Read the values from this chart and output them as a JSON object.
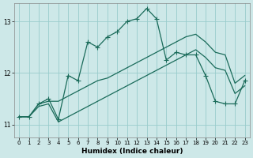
{
  "xlabel": "Humidex (Indice chaleur)",
  "background_color": "#cde8e8",
  "grid_color": "#99cccc",
  "line_color": "#1a6b5a",
  "xlim": [
    -0.5,
    23.5
  ],
  "ylim": [
    10.75,
    13.35
  ],
  "yticks": [
    11,
    12,
    13
  ],
  "xticks": [
    0,
    1,
    2,
    3,
    4,
    5,
    6,
    7,
    8,
    9,
    10,
    11,
    12,
    13,
    14,
    15,
    16,
    17,
    18,
    19,
    20,
    21,
    22,
    23
  ],
  "line_hump_x": [
    0,
    1,
    2,
    3,
    4,
    5,
    6,
    7,
    8,
    9,
    10,
    11,
    12,
    13,
    14,
    15,
    16,
    17,
    18,
    19,
    20,
    21,
    22,
    23
  ],
  "line_hump_y": [
    11.15,
    11.15,
    11.4,
    11.5,
    11.1,
    11.95,
    11.85,
    12.6,
    12.5,
    12.7,
    12.8,
    13.0,
    13.05,
    13.25,
    13.05,
    12.25,
    12.4,
    12.35,
    12.35,
    11.95,
    11.45,
    11.4,
    11.4,
    11.85
  ],
  "line_upper_x": [
    0,
    1,
    2,
    3,
    4,
    5,
    6,
    7,
    8,
    9,
    10,
    11,
    12,
    13,
    14,
    15,
    16,
    17,
    18,
    19,
    20,
    21,
    22,
    23
  ],
  "line_upper_y": [
    11.15,
    11.15,
    11.4,
    11.45,
    11.45,
    11.55,
    11.65,
    11.75,
    11.85,
    11.9,
    12.0,
    12.1,
    12.2,
    12.3,
    12.4,
    12.5,
    12.6,
    12.7,
    12.75,
    12.6,
    12.4,
    12.35,
    11.8,
    11.95
  ],
  "line_lower_x": [
    0,
    1,
    2,
    3,
    4,
    5,
    6,
    7,
    8,
    9,
    10,
    11,
    12,
    13,
    14,
    15,
    16,
    17,
    18,
    19,
    20,
    21,
    22,
    23
  ],
  "line_lower_y": [
    11.15,
    11.15,
    11.35,
    11.4,
    11.05,
    11.15,
    11.25,
    11.35,
    11.45,
    11.55,
    11.65,
    11.75,
    11.85,
    11.95,
    12.05,
    12.15,
    12.25,
    12.35,
    12.45,
    12.3,
    12.1,
    12.05,
    11.6,
    11.75
  ]
}
